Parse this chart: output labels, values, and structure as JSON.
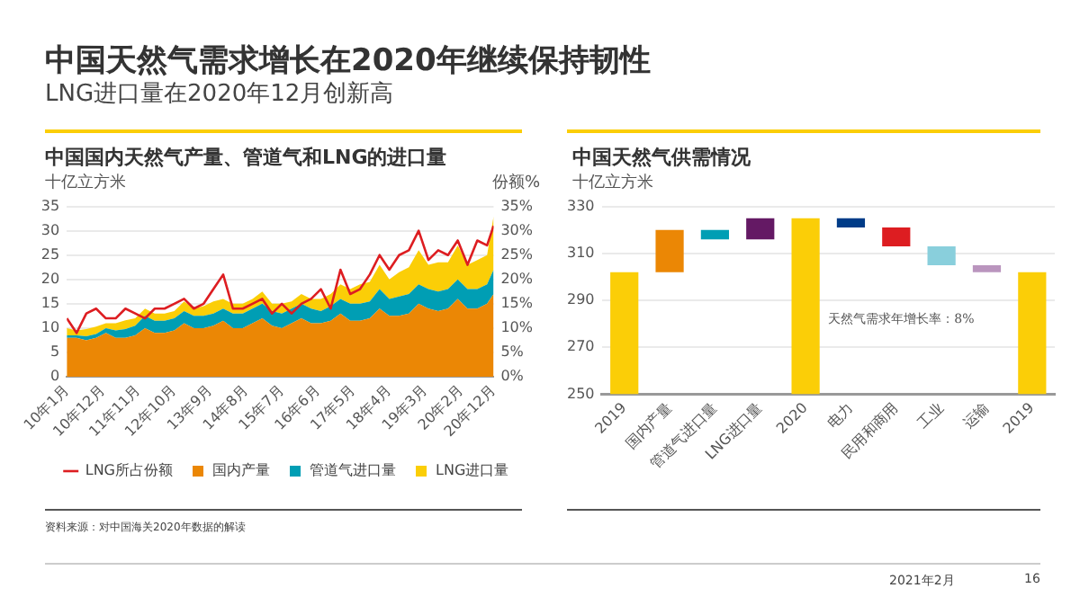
{
  "chart_data": [
    {
      "type": "area",
      "title": "中国国内天然气产量、管道气和LNG的进口量",
      "ylabel": "十亿立方米",
      "y2label": "份额%",
      "x": [
        "2010-01",
        "2010-04",
        "2010-07",
        "2010-10",
        "2011-01",
        "2011-04",
        "2011-07",
        "2011-10",
        "2012-01",
        "2012-04",
        "2012-07",
        "2012-10",
        "2013-01",
        "2013-04",
        "2013-07",
        "2013-10",
        "2014-01",
        "2014-04",
        "2014-07",
        "2014-10",
        "2015-01",
        "2015-04",
        "2015-07",
        "2015-10",
        "2016-01",
        "2016-04",
        "2016-07",
        "2016-10",
        "2017-01",
        "2017-04",
        "2017-07",
        "2017-10",
        "2018-01",
        "2018-04",
        "2018-07",
        "2018-10",
        "2019-01",
        "2019-04",
        "2019-07",
        "2019-10",
        "2020-01",
        "2020-04",
        "2020-07",
        "2020-10",
        "2020-12"
      ],
      "series": [
        {
          "name": "国内产量",
          "color": "#eb8705",
          "values": [
            8,
            8,
            7.5,
            8,
            9,
            8,
            8,
            8.5,
            10,
            9,
            9,
            9.5,
            11,
            10,
            10,
            10.5,
            11.5,
            10,
            10,
            11,
            12,
            10.5,
            10,
            11,
            12,
            11,
            11,
            11.5,
            13,
            11.5,
            11.5,
            12,
            14,
            12.5,
            12.5,
            13,
            15,
            14,
            13.5,
            14,
            16,
            14,
            14,
            15,
            17
          ]
        },
        {
          "name": "管道气进口量",
          "color": "#009eb4",
          "values": [
            0.5,
            0.5,
            0.8,
            0.8,
            1,
            1.5,
            1.8,
            2,
            2.5,
            2.5,
            2.5,
            2.5,
            2.5,
            2.5,
            2.5,
            2.5,
            2.5,
            3,
            3,
            3,
            3,
            3,
            3,
            3,
            3,
            3,
            2.5,
            3,
            3,
            3.5,
            3.5,
            3.5,
            4,
            3.5,
            4,
            4,
            4,
            4,
            4,
            4,
            4,
            4,
            4,
            4,
            5
          ]
        },
        {
          "name": "LNG进口量",
          "color": "#fbce07",
          "values": [
            1.5,
            1,
            1.5,
            1.5,
            1,
            1.5,
            1.8,
            1.5,
            1.5,
            1.5,
            1.5,
            1.5,
            2,
            1.5,
            2,
            2.5,
            2,
            2,
            2,
            2,
            2.5,
            1.5,
            2,
            1.5,
            2,
            2,
            2.5,
            2.5,
            3,
            3,
            4,
            4,
            5,
            4,
            5,
            5.5,
            7,
            5,
            6,
            5.5,
            7,
            5,
            6,
            6,
            11
          ]
        },
        {
          "name": "LNG所占份额",
          "type": "line",
          "axis": "y2",
          "color": "#dd1d21",
          "values": [
            12,
            9,
            13,
            14,
            12,
            12,
            14,
            13,
            12,
            14,
            14,
            15,
            16,
            14,
            15,
            18,
            21,
            14,
            14,
            15,
            16,
            13,
            15,
            13,
            15,
            16,
            18,
            14,
            22,
            17,
            18,
            21,
            25,
            22,
            25,
            26,
            30,
            24,
            26,
            25,
            28,
            23,
            28,
            27,
            31
          ]
        }
      ],
      "xlim": [
        "2010-01",
        "2020-12"
      ],
      "xticks": [
        {
          "value": "2010-01",
          "label": "10年1月"
        },
        {
          "value": "2010-12",
          "label": "10年12月"
        },
        {
          "value": "2011-11",
          "label": "11年11月"
        },
        {
          "value": "2012-10",
          "label": "12年10月"
        },
        {
          "value": "2013-09",
          "label": "13年9月"
        },
        {
          "value": "2014-08",
          "label": "14年8月"
        },
        {
          "value": "2015-07",
          "label": "15年7月"
        },
        {
          "value": "2016-06",
          "label": "16年6月"
        },
        {
          "value": "2017-05",
          "label": "17年5月"
        },
        {
          "value": "2018-04",
          "label": "18年4月"
        },
        {
          "value": "2019-03",
          "label": "19年3月"
        },
        {
          "value": "2020-02",
          "label": "20年2月"
        },
        {
          "value": "2020-12",
          "label": "20年12月"
        }
      ],
      "ylim": [
        0,
        35
      ],
      "yticks": [
        0,
        5,
        10,
        15,
        20,
        25,
        30,
        35
      ],
      "y2lim": [
        0,
        35
      ],
      "y2ticks": [
        {
          "value": 0,
          "label": "0%"
        },
        {
          "value": 5,
          "label": "5%"
        },
        {
          "value": 10,
          "label": "10%"
        },
        {
          "value": 15,
          "label": "15%"
        },
        {
          "value": 20,
          "label": "20%"
        },
        {
          "value": 25,
          "label": "25%"
        },
        {
          "value": 30,
          "label": "30%"
        },
        {
          "value": 35,
          "label": "35%"
        }
      ],
      "stacked": true,
      "grid": "y",
      "legend": "bottom",
      "marker": "none",
      "annotations": [
        "中国天然气需求增长在2020年继续保持韧性",
        "LNG进口量在2020年12月创新高",
        "资料来源：对中国海关2020年数据的解读",
        "2021年2月",
        "16"
      ]
    },
    {
      "type": "bar",
      "title": "中国天然气供需情况",
      "ylabel": "十亿立方米",
      "categories": [
        "2019",
        "国内产量",
        "管道气进口量",
        "LNG进口量",
        "2020",
        "电力",
        "民用和商用",
        "工业",
        "运输",
        "2019"
      ],
      "base": [
        250,
        302,
        316,
        316,
        250,
        321,
        313,
        305,
        302,
        250
      ],
      "values": [
        52,
        18,
        4,
        9,
        75,
        4,
        8,
        8,
        3,
        52
      ],
      "colors": [
        "#fbce07",
        "#eb8705",
        "#009eb4",
        "#641964",
        "#fbce07",
        "#003c88",
        "#dd1d21",
        "#89cfdc",
        "#ba95be",
        "#fbce07"
      ],
      "ylim": [
        250,
        330
      ],
      "yticks": [
        250,
        270,
        290,
        310,
        330
      ],
      "grid": "y",
      "annotations": [
        "天然气需求年增长率：8%"
      ]
    }
  ]
}
